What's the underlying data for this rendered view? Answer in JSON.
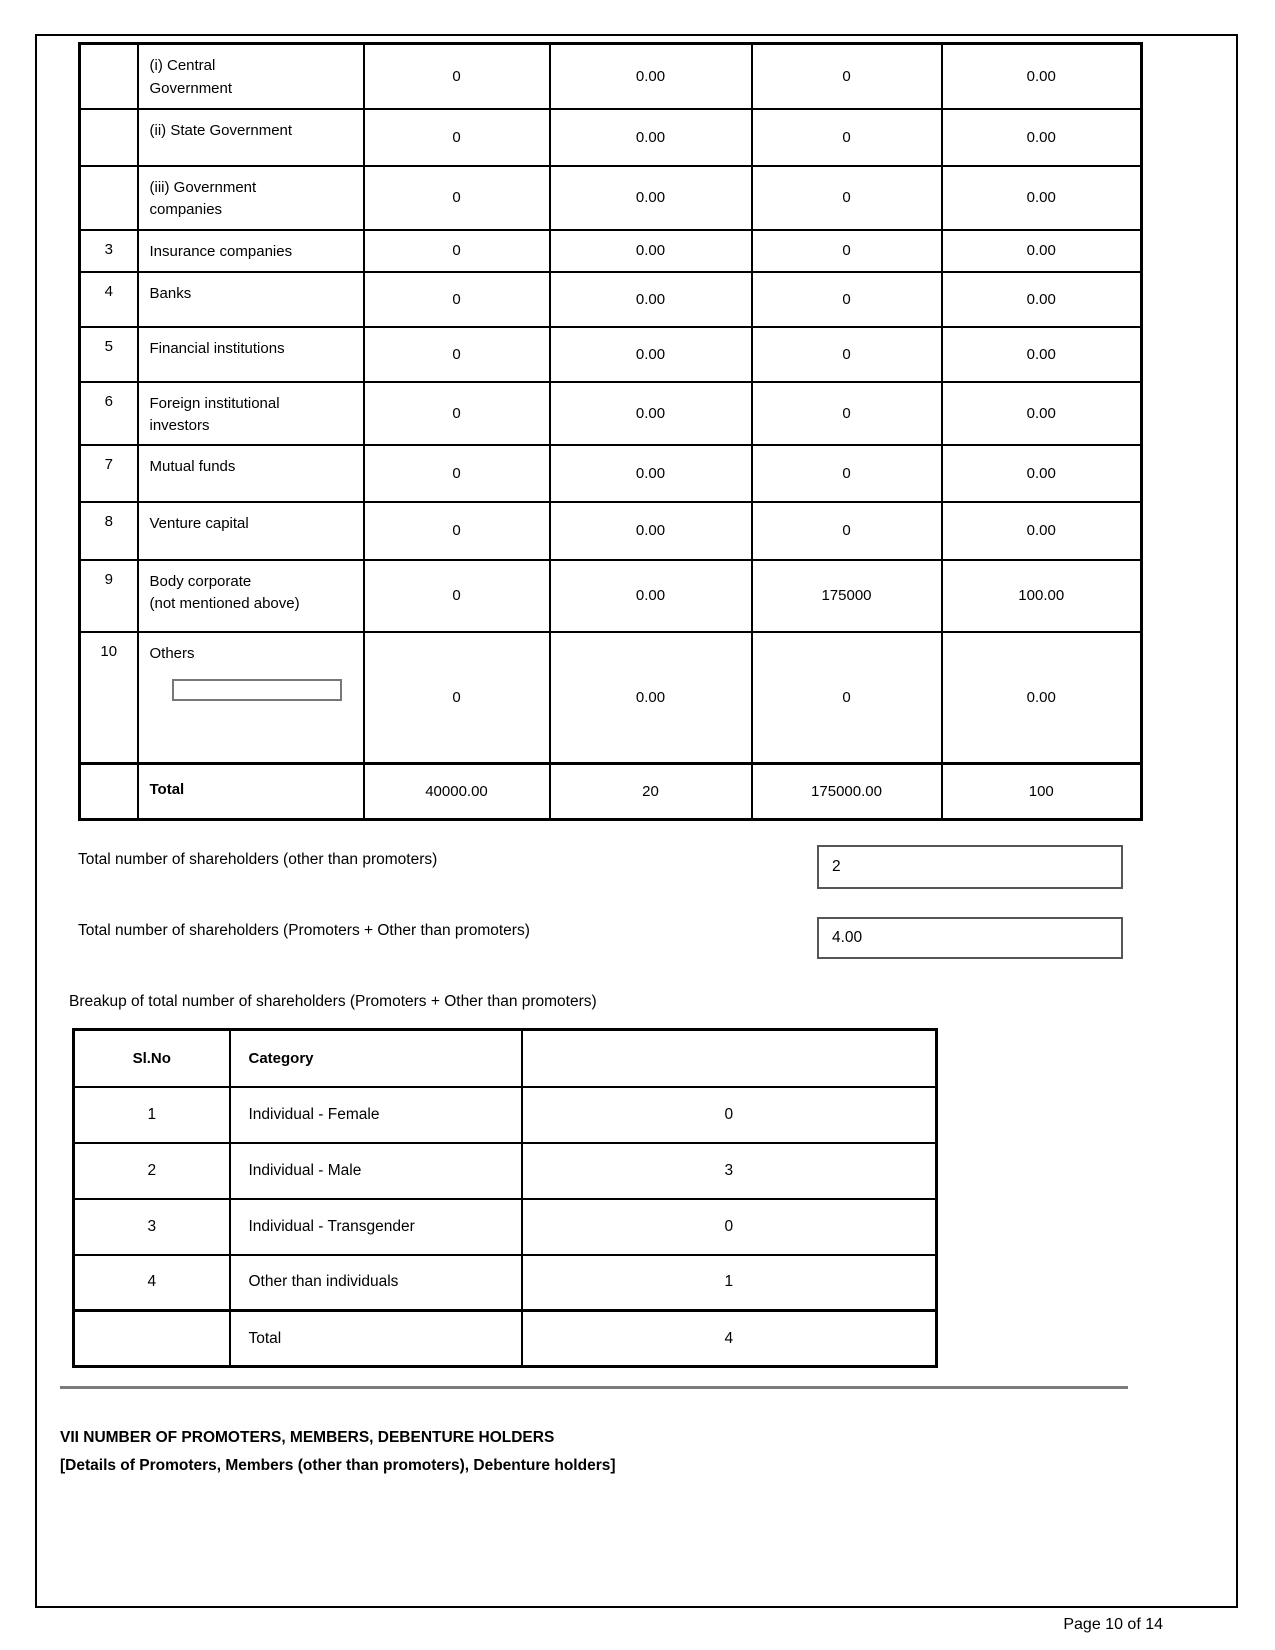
{
  "shareholding_table": {
    "rows": [
      {
        "sl": "",
        "category": "(i) Central\nGovernment",
        "values": [
          "0",
          "0.00",
          "0",
          "0.00"
        ]
      },
      {
        "sl": "",
        "category": "(ii) State Government",
        "values": [
          "0",
          "0.00",
          "0",
          "0.00"
        ]
      },
      {
        "sl": "",
        "category": "(iii) Government\ncompanies",
        "values": [
          "0",
          "0.00",
          "0",
          "0.00"
        ]
      },
      {
        "sl": "3",
        "category": "Insurance companies",
        "values": [
          "0",
          "0.00",
          "0",
          "0.00"
        ]
      },
      {
        "sl": "4",
        "category": "Banks",
        "values": [
          "0",
          "0.00",
          "0",
          "0.00"
        ]
      },
      {
        "sl": "5",
        "category": "Financial institutions",
        "values": [
          "0",
          "0.00",
          "0",
          "0.00"
        ]
      },
      {
        "sl": "6",
        "category": "Foreign institutional\ninvestors",
        "values": [
          "0",
          "0.00",
          "0",
          "0.00"
        ]
      },
      {
        "sl": "7",
        "category": "Mutual funds",
        "values": [
          "0",
          "0.00",
          "0",
          "0.00"
        ]
      },
      {
        "sl": "8",
        "category": "Venture capital",
        "values": [
          "0",
          "0.00",
          "0",
          "0.00"
        ]
      },
      {
        "sl": "9",
        "category": "Body corporate\n(not mentioned above)",
        "values": [
          "0",
          "0.00",
          "175000",
          "100.00"
        ]
      },
      {
        "sl": "10",
        "category": "Others",
        "input_value": "",
        "values": [
          "0",
          "0.00",
          "0",
          "0.00"
        ]
      }
    ],
    "total_row": {
      "label": "Total",
      "values": [
        "40000.00",
        "20",
        "175000.00",
        "100"
      ]
    }
  },
  "summary_fields": [
    {
      "label": "Total number of shareholders (other than promoters)",
      "value": "2"
    },
    {
      "label": "Total number of shareholders (Promoters + Other than promoters)",
      "value": "4.00"
    }
  ],
  "breakup": {
    "heading": "Breakup of total number of shareholders (Promoters + Other than promoters)",
    "headers": {
      "sl": "Sl.No",
      "category": "Category"
    },
    "rows": [
      {
        "sl": "1",
        "category": "Individual - Female",
        "count": "0"
      },
      {
        "sl": "2",
        "category": "Individual - Male",
        "count": "3"
      },
      {
        "sl": "3",
        "category": "Individual - Transgender",
        "count": "0"
      },
      {
        "sl": "4",
        "category": "Other than individuals",
        "count": "1"
      }
    ],
    "total_row": {
      "label": "Total",
      "count": "4"
    }
  },
  "section_vii": {
    "title": "VII NUMBER OF PROMOTERS, MEMBERS, DEBENTURE HOLDERS",
    "subtitle": "[Details of Promoters, Members (other than promoters), Debenture holders]"
  },
  "footer": {
    "page_label": "Page 10 of 14"
  }
}
